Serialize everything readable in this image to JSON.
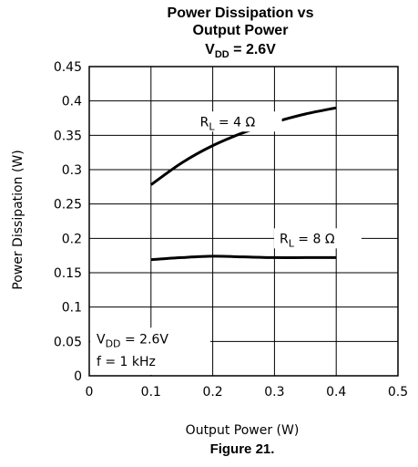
{
  "chart_data": {
    "type": "line",
    "title": {
      "line1": "Power Dissipation vs",
      "line2": "Output Power",
      "line3_prefix": "V",
      "line3_sub": "DD",
      "line3_suffix": " = 2.6V"
    },
    "xlabel": "Output Power (W)",
    "ylabel": "Power Dissipation (W)",
    "xlim": [
      0,
      0.5
    ],
    "ylim": [
      0,
      0.45
    ],
    "x_ticks": [
      {
        "value": 0,
        "label": "0"
      },
      {
        "value": 0.1,
        "label": "0.1"
      },
      {
        "value": 0.2,
        "label": "0.2"
      },
      {
        "value": 0.3,
        "label": "0.3"
      },
      {
        "value": 0.4,
        "label": "0.4"
      },
      {
        "value": 0.5,
        "label": "0.5"
      }
    ],
    "y_ticks": [
      {
        "value": 0,
        "label": "0"
      },
      {
        "value": 0.05,
        "label": "0.05"
      },
      {
        "value": 0.1,
        "label": "0.1"
      },
      {
        "value": 0.15,
        "label": "0.15"
      },
      {
        "value": 0.2,
        "label": "0.2"
      },
      {
        "value": 0.25,
        "label": "0.25"
      },
      {
        "value": 0.3,
        "label": "0.3"
      },
      {
        "value": 0.35,
        "label": "0.35"
      },
      {
        "value": 0.4,
        "label": "0.4"
      },
      {
        "value": 0.45,
        "label": "0.45"
      }
    ],
    "grid": true,
    "series": [
      {
        "name": "RL = 4Ω",
        "label_main": "R",
        "label_sub": "L",
        "label_rest": "  =  4 Ω",
        "x": [
          0.1,
          0.15,
          0.2,
          0.25,
          0.3,
          0.35,
          0.4
        ],
        "y": [
          0.278,
          0.31,
          0.335,
          0.354,
          0.369,
          0.381,
          0.39
        ]
      },
      {
        "name": "RL = 8Ω",
        "label_main": "R",
        "label_sub": "L",
        "label_rest": "  =  8 Ω",
        "x": [
          0.1,
          0.15,
          0.2,
          0.25,
          0.3,
          0.35,
          0.4
        ],
        "y": [
          0.169,
          0.172,
          0.174,
          0.173,
          0.172,
          0.172,
          0.172
        ]
      }
    ],
    "annotations": {
      "vdd_main": "V",
      "vdd_sub": "DD",
      "vdd_rest": "  =  2.6V",
      "freq": "f  =  1 kHz"
    },
    "caption": "Figure 21."
  }
}
